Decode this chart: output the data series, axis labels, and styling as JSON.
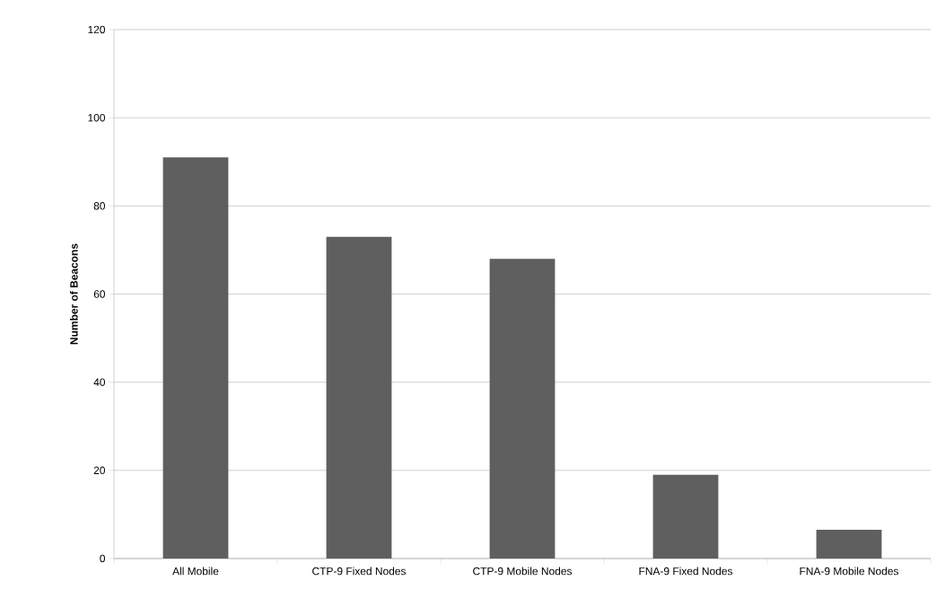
{
  "chart_data": {
    "type": "bar",
    "ylabel": "Number of Beacons",
    "categories": [
      "All Mobile",
      "CTP-9 Fixed Nodes",
      "CTP-9 Mobile Nodes",
      "FNA-9 Fixed Nodes",
      "FNA-9 Mobile Nodes"
    ],
    "values": [
      91,
      73,
      68,
      19,
      6.5
    ],
    "color": "#5f5f5f",
    "ylim": [
      0,
      120
    ],
    "yticks": [
      0,
      20,
      40,
      60,
      80,
      100,
      120
    ],
    "grid": "y"
  }
}
